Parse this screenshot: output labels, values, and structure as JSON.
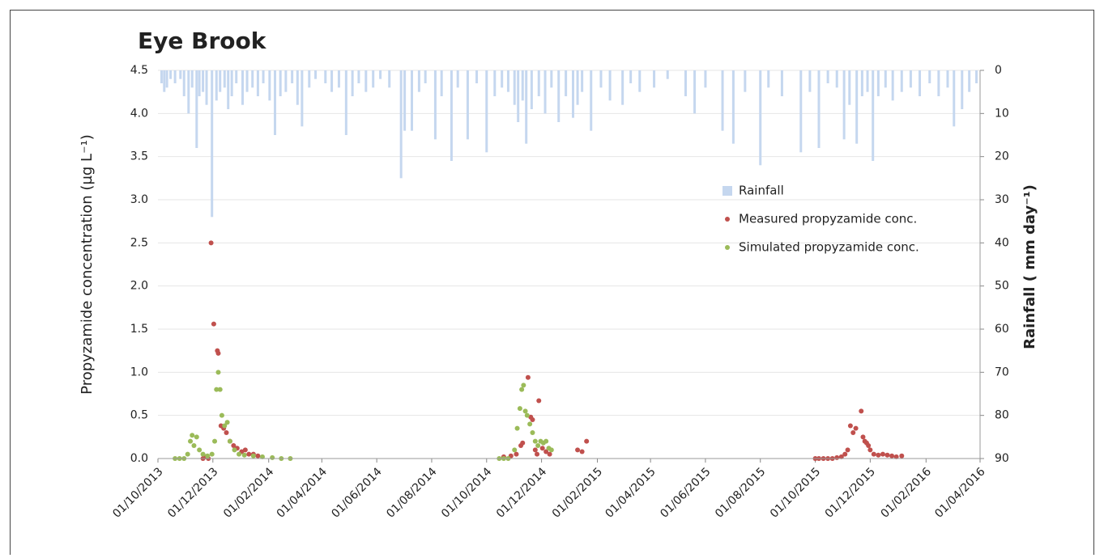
{
  "chart_data": {
    "type": "scatter",
    "title": "Eye Brook",
    "y_label": "Propyzamide concentration (µg L⁻¹)",
    "y2_label": "Rainfall ( mm day⁻¹)",
    "xlim": [
      "2013-10-01",
      "2016-04-01"
    ],
    "xticks": [
      {
        "value": "2013-10-01",
        "label": "01/10/2013"
      },
      {
        "value": "2013-12-01",
        "label": "01/12/2013"
      },
      {
        "value": "2014-02-01",
        "label": "01/02/2014"
      },
      {
        "value": "2014-04-01",
        "label": "01/04/2014"
      },
      {
        "value": "2014-06-01",
        "label": "01/06/2014"
      },
      {
        "value": "2014-08-01",
        "label": "01/08/2014"
      },
      {
        "value": "2014-10-01",
        "label": "01/10/2014"
      },
      {
        "value": "2014-12-01",
        "label": "01/12/2014"
      },
      {
        "value": "2015-02-01",
        "label": "01/02/2015"
      },
      {
        "value": "2015-04-01",
        "label": "01/04/2015"
      },
      {
        "value": "2015-06-01",
        "label": "01/06/2015"
      },
      {
        "value": "2015-08-01",
        "label": "01/08/2015"
      },
      {
        "value": "2015-10-01",
        "label": "01/10/2015"
      },
      {
        "value": "2015-12-01",
        "label": "01/12/2015"
      },
      {
        "value": "2016-02-01",
        "label": "01/02/2016"
      },
      {
        "value": "2016-04-01",
        "label": "01/04/2016"
      }
    ],
    "ylim": [
      0,
      4.5
    ],
    "yticks": [
      {
        "value": 0,
        "label": "0.0"
      },
      {
        "value": 0.5,
        "label": "0.5"
      },
      {
        "value": 1,
        "label": "1.0"
      },
      {
        "value": 1.5,
        "label": "1.5"
      },
      {
        "value": 2,
        "label": "2.0"
      },
      {
        "value": 2.5,
        "label": "2.5"
      },
      {
        "value": 3,
        "label": "3.0"
      },
      {
        "value": 3.5,
        "label": "3.5"
      },
      {
        "value": 4,
        "label": "4.0"
      },
      {
        "value": 4.5,
        "label": "4.5"
      }
    ],
    "y2lim": [
      90,
      0
    ],
    "y2ticks": [
      0,
      10,
      20,
      30,
      40,
      50,
      60,
      70,
      80,
      90
    ],
    "grid": true,
    "legend": "right",
    "series": [
      {
        "name": "Rainfall",
        "type": "bar",
        "axis": "y2",
        "color": "#c5d7ef",
        "x": [
          "2013-10-05",
          "2013-10-08",
          "2013-10-11",
          "2013-10-15",
          "2013-10-20",
          "2013-10-26",
          "2013-10-30",
          "2013-11-04",
          "2013-11-08",
          "2013-11-13",
          "2013-11-16",
          "2013-11-20",
          "2013-11-24",
          "2013-11-30",
          "2013-12-05",
          "2013-12-09",
          "2013-12-14",
          "2013-12-18",
          "2013-12-22",
          "2013-12-27",
          "2014-01-03",
          "2014-01-08",
          "2014-01-14",
          "2014-01-20",
          "2014-01-26",
          "2014-02-02",
          "2014-02-08",
          "2014-02-14",
          "2014-02-20",
          "2014-02-27",
          "2014-03-05",
          "2014-03-10",
          "2014-03-18",
          "2014-03-25",
          "2014-04-05",
          "2014-04-12",
          "2014-04-20",
          "2014-04-28",
          "2014-05-05",
          "2014-05-12",
          "2014-05-20",
          "2014-05-28",
          "2014-06-05",
          "2014-06-15",
          "2014-06-28",
          "2014-07-02",
          "2014-07-10",
          "2014-07-18",
          "2014-07-25",
          "2014-08-05",
          "2014-08-12",
          "2014-08-23",
          "2014-08-30",
          "2014-09-10",
          "2014-09-20",
          "2014-10-01",
          "2014-10-10",
          "2014-10-18",
          "2014-10-25",
          "2014-11-01",
          "2014-11-05",
          "2014-11-10",
          "2014-11-14",
          "2014-11-20",
          "2014-11-28",
          "2014-12-05",
          "2014-12-12",
          "2014-12-20",
          "2014-12-28",
          "2015-01-05",
          "2015-01-10",
          "2015-01-15",
          "2015-01-25",
          "2015-02-05",
          "2015-02-15",
          "2015-03-01",
          "2015-03-10",
          "2015-03-20",
          "2015-04-05",
          "2015-04-20",
          "2015-05-10",
          "2015-05-20",
          "2015-06-01",
          "2015-06-20",
          "2015-07-02",
          "2015-07-15",
          "2015-08-01",
          "2015-08-10",
          "2015-08-25",
          "2015-09-15",
          "2015-09-25",
          "2015-10-05",
          "2015-10-15",
          "2015-10-25",
          "2015-11-02",
          "2015-11-08",
          "2015-11-16",
          "2015-11-22",
          "2015-11-28",
          "2015-12-04",
          "2015-12-10",
          "2015-12-18",
          "2015-12-26",
          "2016-01-05",
          "2016-01-15",
          "2016-01-25",
          "2016-02-05",
          "2016-02-15",
          "2016-02-25",
          "2016-03-03",
          "2016-03-12",
          "2016-03-20",
          "2016-03-28"
        ],
        "values": [
          3,
          5,
          4,
          2,
          3,
          2,
          6,
          10,
          4,
          18,
          6,
          5,
          8,
          34,
          7,
          5,
          4,
          9,
          6,
          3,
          8,
          5,
          4,
          6,
          3,
          7,
          15,
          6,
          5,
          3,
          8,
          13,
          4,
          2,
          3,
          5,
          4,
          15,
          6,
          3,
          5,
          4,
          2,
          4,
          25,
          14,
          14,
          5,
          3,
          16,
          6,
          21,
          4,
          16,
          3,
          19,
          6,
          4,
          5,
          8,
          12,
          7,
          17,
          9,
          6,
          10,
          4,
          12,
          6,
          11,
          8,
          5,
          14,
          4,
          7,
          8,
          3,
          5,
          4,
          2,
          6,
          10,
          4,
          14,
          17,
          5,
          22,
          4,
          6,
          19,
          5,
          18,
          3,
          4,
          16,
          8,
          17,
          6,
          5,
          21,
          6,
          4,
          7,
          5,
          4,
          6,
          3,
          6,
          4,
          13,
          9,
          5,
          3
        ]
      },
      {
        "name": "Measured propyzamide conc.",
        "color": "#c0504d",
        "x": [
          "2013-11-20",
          "2013-11-23",
          "2013-11-26",
          "2013-11-29",
          "2013-12-02",
          "2013-12-06",
          "2013-12-07",
          "2013-12-10",
          "2013-12-13",
          "2013-12-16",
          "2013-12-20",
          "2013-12-24",
          "2013-12-28",
          "2014-01-02",
          "2014-01-06",
          "2014-01-10",
          "2014-01-15",
          "2014-01-20",
          "2014-10-20",
          "2014-10-28",
          "2014-11-03",
          "2014-11-08",
          "2014-11-10",
          "2014-11-16",
          "2014-11-19",
          "2014-11-21",
          "2014-11-24",
          "2014-11-26",
          "2014-11-28",
          "2014-12-02",
          "2014-12-06",
          "2014-12-10",
          "2015-01-10",
          "2015-01-15",
          "2015-01-20",
          "2015-10-01",
          "2015-10-05",
          "2015-10-10",
          "2015-10-15",
          "2015-10-20",
          "2015-10-25",
          "2015-10-30",
          "2015-11-03",
          "2015-11-06",
          "2015-11-09",
          "2015-11-12",
          "2015-11-15",
          "2015-11-21",
          "2015-11-23",
          "2015-11-25",
          "2015-11-27",
          "2015-11-29",
          "2015-12-01",
          "2015-12-05",
          "2015-12-10",
          "2015-12-15",
          "2015-12-20",
          "2015-12-25",
          "2015-12-30",
          "2016-01-05"
        ],
        "values": [
          0,
          0.02,
          0,
          2.5,
          1.56,
          1.25,
          1.22,
          0.38,
          0.35,
          0.3,
          0.2,
          0.15,
          0.12,
          0.08,
          0.1,
          0.05,
          0.05,
          0.03,
          0.02,
          0.03,
          0.05,
          0.15,
          0.18,
          0.94,
          0.48,
          0.45,
          0.1,
          0.05,
          0.67,
          0.12,
          0.08,
          0.05,
          0.1,
          0.08,
          0.2,
          0,
          0,
          0,
          0,
          0,
          0.01,
          0.02,
          0.05,
          0.1,
          0.38,
          0.3,
          0.35,
          0.55,
          0.25,
          0.2,
          0.18,
          0.15,
          0.1,
          0.05,
          0.04,
          0.05,
          0.04,
          0.03,
          0.02,
          0.03
        ]
      },
      {
        "name": "Simulated propyzamide conc.",
        "color": "#9bbb59",
        "x": [
          "2013-10-20",
          "2013-10-25",
          "2013-10-30",
          "2013-11-03",
          "2013-11-06",
          "2013-11-08",
          "2013-11-10",
          "2013-11-13",
          "2013-11-16",
          "2013-11-20",
          "2013-11-25",
          "2013-11-30",
          "2013-12-03",
          "2013-12-05",
          "2013-12-07",
          "2013-12-09",
          "2013-12-11",
          "2013-12-14",
          "2013-12-17",
          "2013-12-20",
          "2013-12-25",
          "2013-12-30",
          "2014-01-05",
          "2014-01-15",
          "2014-01-25",
          "2014-02-05",
          "2014-02-15",
          "2014-02-25",
          "2014-10-15",
          "2014-10-20",
          "2014-10-25",
          "2014-11-01",
          "2014-11-04",
          "2014-11-07",
          "2014-11-09",
          "2014-11-11",
          "2014-11-13",
          "2014-11-15",
          "2014-11-18",
          "2014-11-21",
          "2014-11-24",
          "2014-11-27",
          "2014-11-30",
          "2014-12-03",
          "2014-12-06",
          "2014-12-09",
          "2014-12-12"
        ],
        "values": [
          0,
          0,
          0,
          0.05,
          0.2,
          0.27,
          0.15,
          0.25,
          0.1,
          0.05,
          0.03,
          0.05,
          0.2,
          0.8,
          1,
          0.8,
          0.5,
          0.38,
          0.42,
          0.2,
          0.1,
          0.05,
          0.04,
          0.03,
          0.02,
          0.01,
          0,
          0,
          0,
          0,
          0,
          0.1,
          0.35,
          0.58,
          0.8,
          0.85,
          0.55,
          0.5,
          0.4,
          0.3,
          0.2,
          0.15,
          0.2,
          0.18,
          0.2,
          0.12,
          0.1
        ]
      }
    ]
  }
}
